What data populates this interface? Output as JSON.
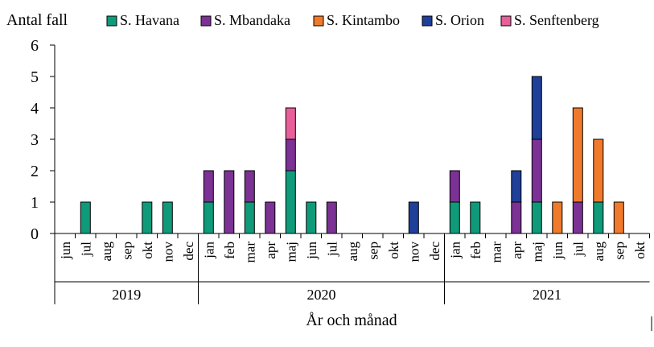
{
  "chart_data": {
    "type": "bar",
    "stacked": true,
    "ylabel": "Antal fall",
    "xlabel": "År och månad",
    "ylim": [
      0,
      6
    ],
    "yticks": [
      0,
      1,
      2,
      3,
      4,
      5,
      6
    ],
    "categories": [
      "jun",
      "jul",
      "aug",
      "sep",
      "okt",
      "nov",
      "dec",
      "jan",
      "feb",
      "mar",
      "apr",
      "maj",
      "jun",
      "jul",
      "aug",
      "sep",
      "okt",
      "nov",
      "dec",
      "jan",
      "feb",
      "mar",
      "apr",
      "maj",
      "jun",
      "jul",
      "aug",
      "sep",
      "okt"
    ],
    "years": [
      {
        "label": "2019",
        "start": 0,
        "end": 6
      },
      {
        "label": "2020",
        "start": 7,
        "end": 18
      },
      {
        "label": "2021",
        "start": 19,
        "end": 28
      }
    ],
    "series": [
      {
        "name": "S. Havana",
        "color": "#0f9b7a",
        "values": [
          0,
          1,
          0,
          0,
          1,
          1,
          0,
          1,
          0,
          1,
          0,
          2,
          1,
          0,
          0,
          0,
          0,
          0,
          0,
          1,
          1,
          0,
          0,
          1,
          0,
          0,
          1,
          0,
          0
        ]
      },
      {
        "name": "S. Mbandaka",
        "color": "#7b3294",
        "values": [
          0,
          0,
          0,
          0,
          0,
          0,
          0,
          1,
          2,
          1,
          1,
          1,
          0,
          1,
          0,
          0,
          0,
          0,
          0,
          1,
          0,
          0,
          1,
          2,
          0,
          1,
          0,
          0,
          0
        ]
      },
      {
        "name": "S. Kintambo",
        "color": "#f07a2c",
        "values": [
          0,
          0,
          0,
          0,
          0,
          0,
          0,
          0,
          0,
          0,
          0,
          0,
          0,
          0,
          0,
          0,
          0,
          0,
          0,
          0,
          0,
          0,
          0,
          0,
          1,
          3,
          2,
          1,
          0
        ]
      },
      {
        "name": "S. Orion",
        "color": "#1f3f99",
        "values": [
          0,
          0,
          0,
          0,
          0,
          0,
          0,
          0,
          0,
          0,
          0,
          0,
          0,
          0,
          0,
          0,
          0,
          1,
          0,
          0,
          0,
          0,
          1,
          2,
          0,
          0,
          0,
          0,
          0
        ]
      },
      {
        "name": "S. Senftenberg",
        "color": "#e8609a",
        "values": [
          0,
          0,
          0,
          0,
          0,
          0,
          0,
          0,
          0,
          0,
          0,
          1,
          0,
          0,
          0,
          0,
          0,
          0,
          0,
          0,
          0,
          0,
          0,
          0,
          0,
          0,
          0,
          0,
          0
        ]
      }
    ]
  }
}
